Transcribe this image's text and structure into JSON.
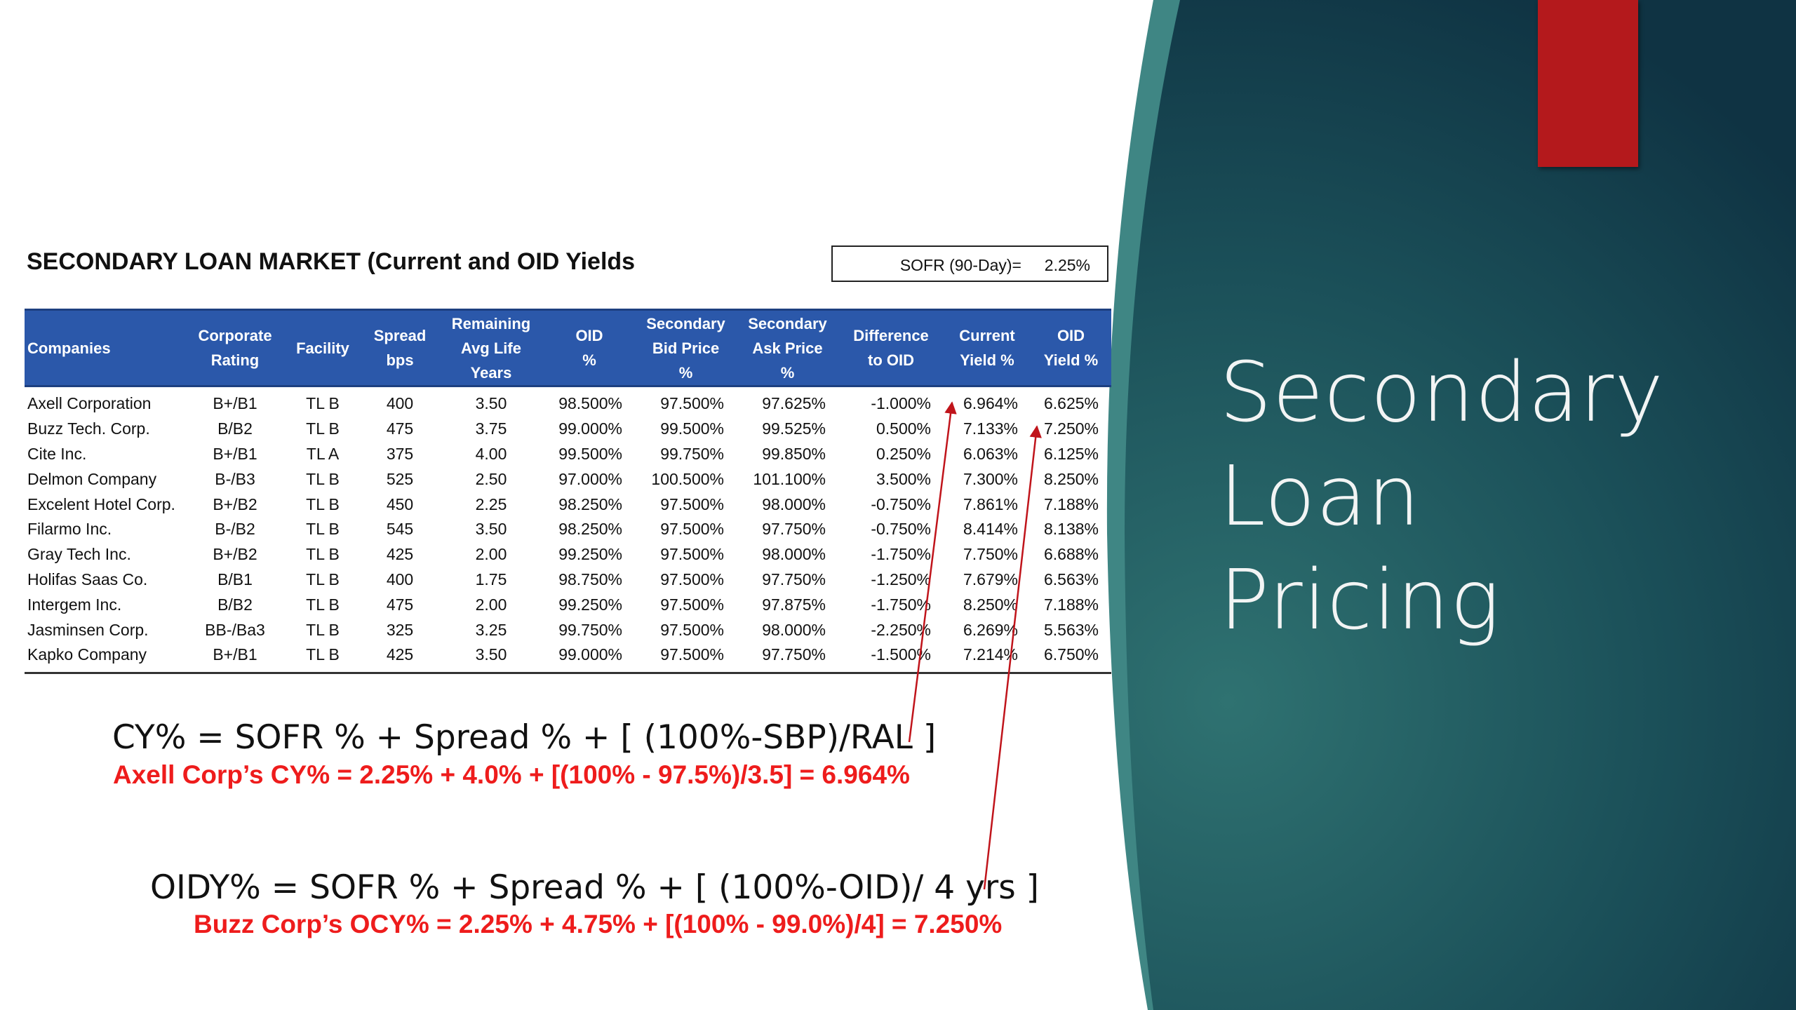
{
  "slide": {
    "title_lines": [
      "Secondary",
      "Loan",
      "Pricing"
    ],
    "colors": {
      "panel_dark": "#123c49",
      "panel_teal": "#2b6a6a",
      "accent_red": "#b4191c",
      "header_blue": "#2b58aa",
      "formula_red": "#ee1c1c"
    }
  },
  "table": {
    "title": "SECONDARY LOAN MARKET (Current and OID Yields",
    "sofr_label": "SOFR (90-Day)=",
    "sofr_value": "2.25%",
    "headers": [
      [
        "Companies"
      ],
      [
        "Corporate",
        "Rating"
      ],
      [
        "Facility"
      ],
      [
        "Spread",
        "bps"
      ],
      [
        "Remaining",
        "Avg Life",
        "Years"
      ],
      [
        "OID",
        "%"
      ],
      [
        "Secondary",
        "Bid Price",
        "%"
      ],
      [
        "Secondary",
        "Ask Price",
        "%"
      ],
      [
        "Difference",
        "to OID"
      ],
      [
        "Current",
        "Yield %"
      ],
      [
        "OID",
        "Yield %"
      ]
    ],
    "rows": [
      [
        "Axell Corporation",
        "B+/B1",
        "TL B",
        "400",
        "3.50",
        "98.500%",
        "97.500%",
        "97.625%",
        "-1.000%",
        "6.964%",
        "6.625%"
      ],
      [
        "Buzz Tech. Corp.",
        "B/B2",
        "TL B",
        "475",
        "3.75",
        "99.000%",
        "99.500%",
        "99.525%",
        "0.500%",
        "7.133%",
        "7.250%"
      ],
      [
        "Cite Inc.",
        "B+/B1",
        "TL A",
        "375",
        "4.00",
        "99.500%",
        "99.750%",
        "99.850%",
        "0.250%",
        "6.063%",
        "6.125%"
      ],
      [
        "Delmon Company",
        "B-/B3",
        "TL B",
        "525",
        "2.50",
        "97.000%",
        "100.500%",
        "101.100%",
        "3.500%",
        "7.300%",
        "8.250%"
      ],
      [
        "Excelent Hotel Corp.",
        "B+/B2",
        "TL B",
        "450",
        "2.25",
        "98.250%",
        "97.500%",
        "98.000%",
        "-0.750%",
        "7.861%",
        "7.188%"
      ],
      [
        "Filarmo Inc.",
        "B-/B2",
        "TL B",
        "545",
        "3.50",
        "98.250%",
        "97.500%",
        "97.750%",
        "-0.750%",
        "8.414%",
        "8.138%"
      ],
      [
        "Gray Tech Inc.",
        "B+/B2",
        "TL B",
        "425",
        "2.00",
        "99.250%",
        "97.500%",
        "98.000%",
        "-1.750%",
        "7.750%",
        "6.688%"
      ],
      [
        "Holifas Saas Co.",
        "B/B1",
        "TL B",
        "400",
        "1.75",
        "98.750%",
        "97.500%",
        "97.750%",
        "-1.250%",
        "7.679%",
        "6.563%"
      ],
      [
        "Intergem Inc.",
        "B/B2",
        "TL B",
        "475",
        "2.00",
        "99.250%",
        "97.500%",
        "97.875%",
        "-1.750%",
        "8.250%",
        "7.188%"
      ],
      [
        "Jasminsen Corp.",
        "BB-/Ba3",
        "TL B",
        "325",
        "3.25",
        "99.750%",
        "97.500%",
        "98.000%",
        "-2.250%",
        "6.269%",
        "5.563%"
      ],
      [
        "Kapko Company",
        "B+/B1",
        "TL B",
        "425",
        "3.50",
        "99.000%",
        "97.500%",
        "97.750%",
        "-1.500%",
        "7.214%",
        "6.750%"
      ]
    ]
  },
  "formulas": {
    "cy": "CY% = SOFR % + Spread % + [ (100%-SBP)/RAL ]",
    "cy_example": "Axell Corp’s CY% = 2.25% + 4.0% + [(100% - 97.5%)/3.5] = 6.964%",
    "oid": "OIDY% = SOFR % + Spread % + [ (100%-OID)/ 4 yrs ]",
    "oid_example": "Buzz Corp’s OCY% = 2.25% + 4.75% + [(100% - 99.0%)/4] = 7.250%"
  }
}
